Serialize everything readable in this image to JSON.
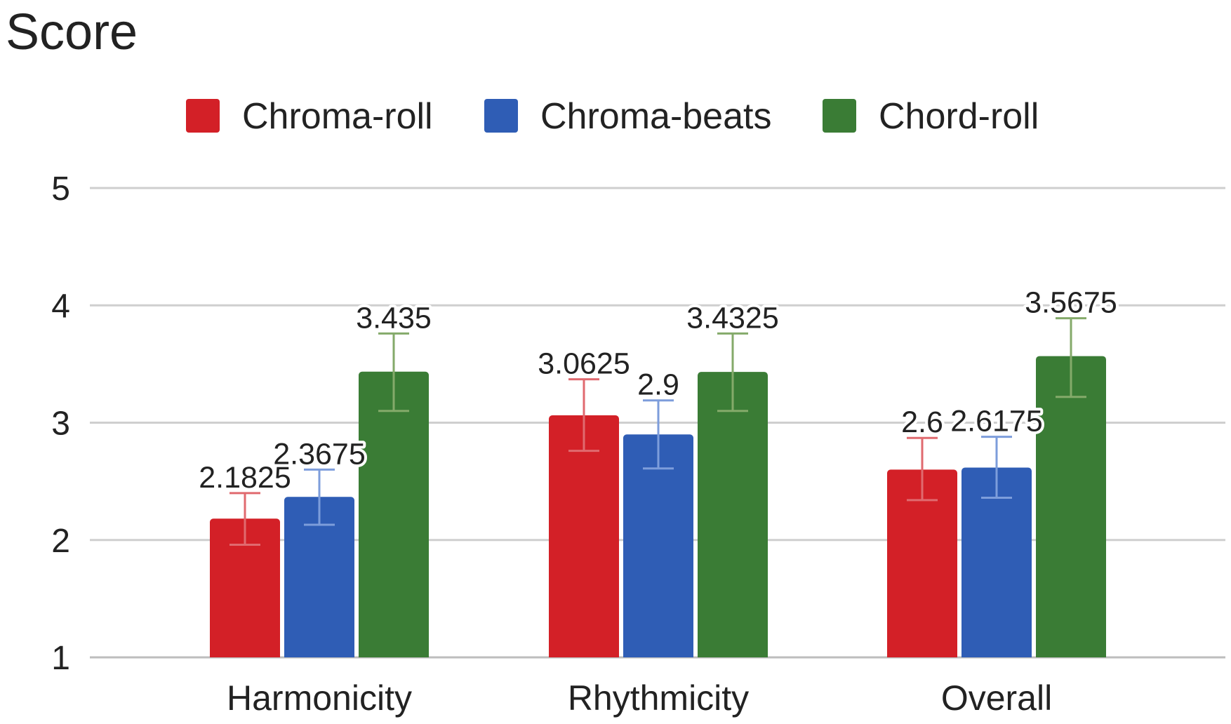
{
  "chart_data": {
    "type": "bar",
    "ylabel": "Score",
    "xlabel": "",
    "title": "",
    "ylim": [
      1,
      5
    ],
    "yticks": [
      1,
      2,
      3,
      4,
      5
    ],
    "grid": true,
    "legend_position": "top",
    "categories": [
      "Harmonicity",
      "Rhythmicity",
      "Overall"
    ],
    "series": [
      {
        "name": "Chroma-roll",
        "color": "#d32027",
        "values": [
          2.1825,
          3.0625,
          2.6
        ],
        "labels": [
          "2.1825",
          "3.0625",
          "2.6"
        ],
        "error_low": [
          1.96,
          2.76,
          2.34
        ],
        "error_high": [
          2.4,
          3.37,
          2.87
        ],
        "error_color": "#e06a6f"
      },
      {
        "name": "Chroma-beats",
        "color": "#2f5db5",
        "values": [
          2.3675,
          2.9,
          2.6175
        ],
        "labels": [
          "2.3675",
          "2.9",
          "2.6175"
        ],
        "error_low": [
          2.13,
          2.61,
          2.36
        ],
        "error_high": [
          2.6,
          3.19,
          2.88
        ],
        "error_color": "#7d9ddb"
      },
      {
        "name": "Chord-roll",
        "color": "#3a7c35",
        "values": [
          3.435,
          3.4325,
          3.5675
        ],
        "labels": [
          "3.435",
          "3.4325",
          "3.5675"
        ],
        "error_low": [
          3.1,
          3.1,
          3.22
        ],
        "error_high": [
          3.76,
          3.76,
          3.89
        ],
        "error_color": "#84aa6a"
      }
    ]
  }
}
